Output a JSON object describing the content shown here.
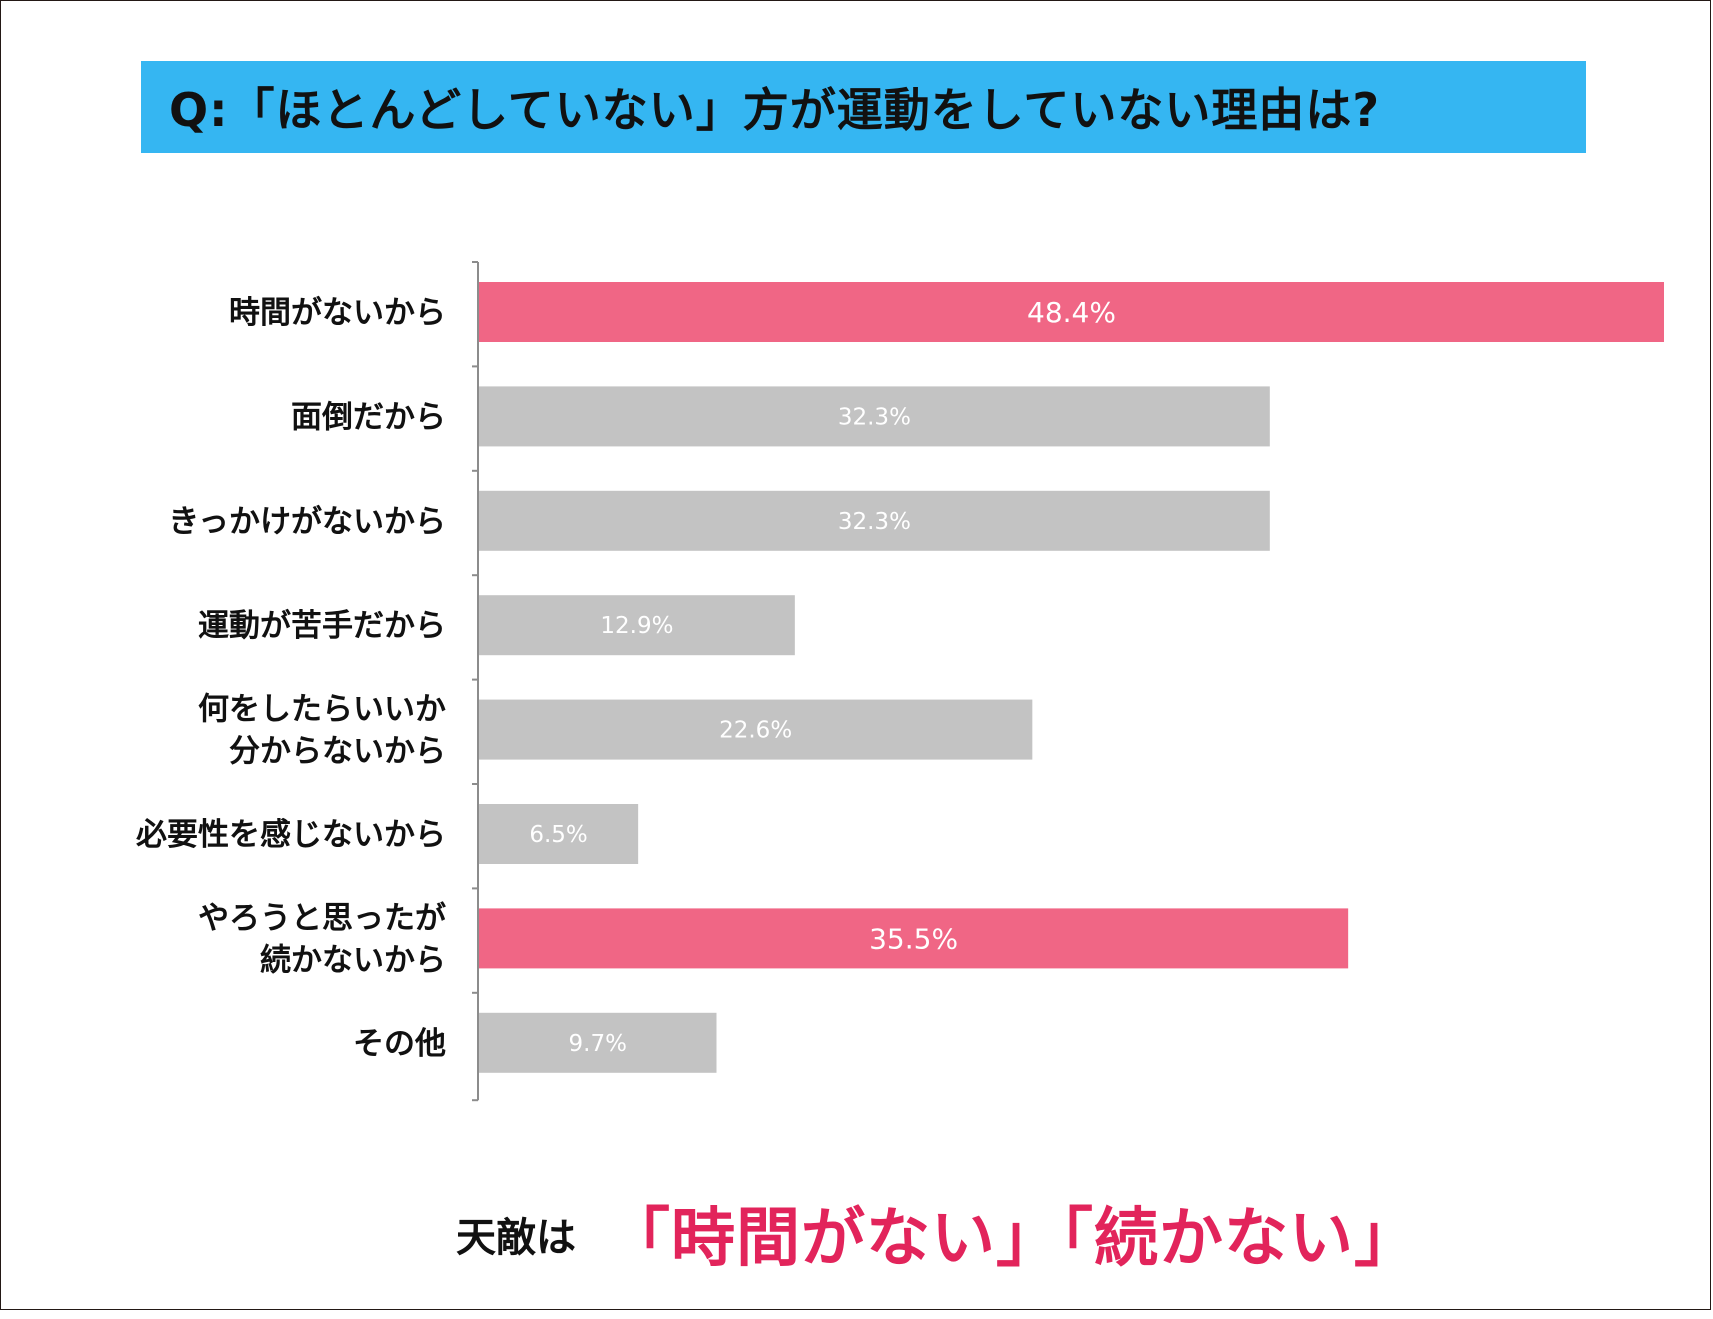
{
  "title": "Q:「ほとんどしていない」方が運動をしていない理由は?",
  "chart_data": {
    "type": "bar",
    "orientation": "horizontal",
    "categories": [
      [
        "時間がないから"
      ],
      [
        "面倒だから"
      ],
      [
        "きっかけがないから"
      ],
      [
        "運動が苦手だから"
      ],
      [
        "何をしたらいいか",
        "分からないから"
      ],
      [
        "必要性を感じないから"
      ],
      [
        "やろうと思ったが",
        "続かないから"
      ],
      [
        "その他"
      ]
    ],
    "values": [
      48.4,
      32.3,
      32.3,
      12.9,
      22.6,
      6.5,
      35.5,
      9.7
    ],
    "value_labels": [
      "48.4%",
      "32.3%",
      "32.3%",
      "12.9%",
      "22.6%",
      "6.5%",
      "35.5%",
      "9.7%"
    ],
    "highlighted": [
      true,
      false,
      false,
      false,
      false,
      false,
      true,
      false
    ],
    "colors": {
      "highlight": "#f06685",
      "normal": "#c3c3c3",
      "axis": "#8c8c8c",
      "category_text": "#111111",
      "value_text": "#ffffff"
    },
    "xlim": [
      0,
      48.4
    ],
    "grid": false,
    "legend": "none"
  },
  "footer": {
    "lead": "天敵は",
    "emphasis": "「時間がない」「続かない」",
    "emphasis_color": "#e2245b"
  }
}
